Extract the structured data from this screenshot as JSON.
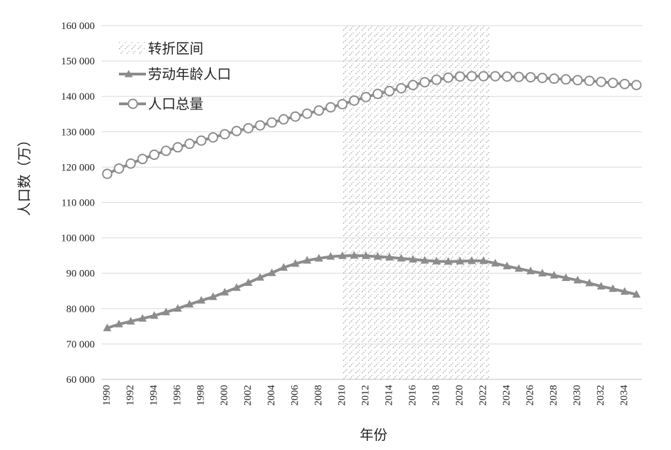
{
  "chart_data": {
    "type": "line",
    "xlabel": "年份",
    "ylabel": "人口数（万）",
    "ylim": [
      60000,
      160000
    ],
    "yticks": [
      "60 000",
      "70 000",
      "80 000",
      "90 000",
      "100 000",
      "110 000",
      "120 000",
      "130 000",
      "140 000",
      "150 000",
      "160 000"
    ],
    "xticks": [
      "1990",
      "1992",
      "1994",
      "1996",
      "1998",
      "2000",
      "2002",
      "2004",
      "2006",
      "2008",
      "2010",
      "2012",
      "2014",
      "2016",
      "2018",
      "2020",
      "2022",
      "2024",
      "2026",
      "2028",
      "2030",
      "2032",
      "2034"
    ],
    "x": [
      1990,
      1991,
      1992,
      1993,
      1994,
      1995,
      1996,
      1997,
      1998,
      1999,
      2000,
      2001,
      2002,
      2003,
      2004,
      2005,
      2006,
      2007,
      2008,
      2009,
      2010,
      2011,
      2012,
      2013,
      2014,
      2015,
      2016,
      2017,
      2018,
      2019,
      2020,
      2021,
      2022,
      2023,
      2024,
      2025,
      2026,
      2027,
      2028,
      2029,
      2030,
      2031,
      2032,
      2033,
      2034,
      2035
    ],
    "grid": true,
    "legend_position": "top-left",
    "shaded_region": {
      "name": "转折区间",
      "x_start": 2010,
      "x_end": 2022.5
    },
    "series": [
      {
        "name": "劳动年龄人口",
        "marker": "triangle",
        "color": "#8c8c8c",
        "values": [
          74500,
          75600,
          76400,
          77200,
          78000,
          79000,
          80000,
          81200,
          82300,
          83300,
          84600,
          85900,
          87300,
          88800,
          90100,
          91600,
          92700,
          93600,
          94200,
          94700,
          94900,
          95000,
          94900,
          94700,
          94500,
          94200,
          93900,
          93600,
          93400,
          93300,
          93400,
          93500,
          93500,
          92800,
          92000,
          91300,
          90600,
          90000,
          89400,
          88700,
          88000,
          87200,
          86300,
          85600,
          84800,
          84000
        ]
      },
      {
        "name": "人口总量",
        "marker": "circle",
        "color": "#8c8c8c",
        "values": [
          118100,
          119600,
          121000,
          122300,
          123500,
          124600,
          125600,
          126600,
          127500,
          128400,
          129300,
          130200,
          131000,
          131800,
          132600,
          133500,
          134300,
          135100,
          136000,
          136900,
          137800,
          138800,
          139800,
          140700,
          141500,
          142300,
          143200,
          144000,
          144700,
          145300,
          145600,
          145700,
          145700,
          145700,
          145600,
          145500,
          145400,
          145200,
          145000,
          144800,
          144600,
          144400,
          144100,
          143800,
          143500,
          143200
        ]
      }
    ]
  }
}
